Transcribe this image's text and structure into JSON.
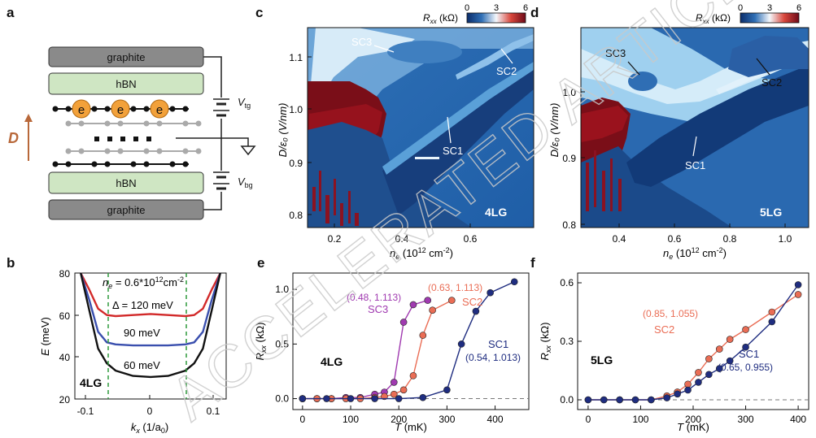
{
  "watermark": "ACCELERATED ARTICLE PREVIEW",
  "panels": {
    "a": {
      "letter": "a",
      "layers": [
        "graphite",
        "hBN",
        "hBN",
        "graphite"
      ],
      "electron_symbol": "e",
      "field_label": "D",
      "gate_top": "V",
      "gate_top_sub": "tg",
      "gate_bottom": "V",
      "gate_bottom_sub": "bg"
    },
    "b": {
      "letter": "b",
      "ne_label": "n",
      "ne_sub": "e",
      "ne_value": " = 0.6*10",
      "ne_exp": "12",
      "ne_unit": "cm",
      "ne_unit_exp": "-2",
      "delta_label": "Δ = 120 meV",
      "label_90": "90 meV",
      "label_60": "60 meV",
      "sample": "4LG",
      "ylabel": "E (meV)",
      "xlabel_main": "k",
      "xlabel_sub": "x",
      "xlabel_unit": " (1/a",
      "xlabel_unit_sub": "0",
      "xlabel_close": ")",
      "yticks": [
        "20",
        "40",
        "60",
        "80"
      ],
      "xticks": [
        "-0.1",
        "0",
        "0.1"
      ]
    },
    "c": {
      "letter": "c",
      "colorbar_label": "R",
      "colorbar_sub": "xx",
      "colorbar_unit": " (kΩ)",
      "colorbar_ticks": [
        "0",
        "3",
        "6"
      ],
      "yticks": [
        "0.8",
        "0.9",
        "1.0",
        "1.1"
      ],
      "xticks": [
        "0.2",
        "0.4",
        "0.6"
      ],
      "ylabel": "D/ε₀ (V/nm)",
      "xlabel": "n",
      "xlabel_sub": "e",
      "xlabel_unit": " (10",
      "xlabel_exp": "12",
      "xlabel_tail": " cm",
      "xlabel_tail_exp": "-2",
      "xlabel_close": ")",
      "sample": "4LG",
      "annotations": [
        "SC3",
        "SC2",
        "SC1"
      ]
    },
    "d": {
      "letter": "d",
      "colorbar_ticks": [
        "0",
        "3",
        "6"
      ],
      "yticks": [
        "0.8",
        "0.9",
        "1.0"
      ],
      "xticks": [
        "0.4",
        "0.6",
        "0.8",
        "1.0"
      ],
      "sample": "5LG",
      "annotations": [
        "SC3",
        "SC2",
        "SC1"
      ]
    },
    "e": {
      "letter": "e",
      "ylabel": "R",
      "ylabel_sub": "xx",
      "ylabel_unit": " (kΩ)",
      "xlabel": "T",
      "xlabel_unit": " (mK)",
      "yticks": [
        "0.0",
        "0.5",
        "1.0"
      ],
      "xticks": [
        "0",
        "100",
        "200",
        "300",
        "400"
      ],
      "sample": "4LG",
      "annot_sc3_coord": "(0.48, 1.113)",
      "annot_sc3": "SC3",
      "annot_sc2_coord": "(0.63, 1.113)",
      "annot_sc2": "SC2",
      "annot_sc1": "SC1",
      "annot_sc1_coord": "(0.54, 1.013)"
    },
    "f": {
      "letter": "f",
      "yticks": [
        "0.0",
        "0.3",
        "0.6"
      ],
      "xticks": [
        "0",
        "100",
        "200",
        "300",
        "400"
      ],
      "sample": "5LG",
      "annot_sc2_coord": "(0.85, 1.055)",
      "annot_sc2": "SC2",
      "annot_sc1": "SC1",
      "annot_sc1_coord": "(0.65, 0.955)"
    }
  },
  "chart_data": [
    {
      "type": "line",
      "panel": "e",
      "xlabel": "T (mK)",
      "ylabel": "Rxx (kΩ)",
      "xlim": [
        -20,
        470
      ],
      "ylim": [
        -0.1,
        1.15
      ],
      "series": [
        {
          "name": "SC3",
          "color": "#a03ab0",
          "x": [
            0,
            30,
            60,
            90,
            120,
            150,
            170,
            190,
            210,
            230,
            260
          ],
          "y": [
            0.0,
            0.0,
            0.0,
            0.01,
            0.01,
            0.04,
            0.06,
            0.15,
            0.7,
            0.86,
            0.9
          ]
        },
        {
          "name": "SC2",
          "color": "#ea6d55",
          "x": [
            0,
            30,
            60,
            90,
            120,
            150,
            170,
            190,
            210,
            230,
            250,
            270,
            310
          ],
          "y": [
            0.0,
            0.0,
            0.0,
            0.0,
            0.0,
            0.01,
            0.02,
            0.04,
            0.08,
            0.21,
            0.58,
            0.81,
            0.9
          ]
        },
        {
          "name": "SC1",
          "color": "#1f2d80",
          "x": [
            0,
            50,
            100,
            150,
            200,
            250,
            300,
            330,
            360,
            390,
            440
          ],
          "y": [
            0.0,
            0.0,
            0.0,
            0.0,
            0.0,
            0.01,
            0.08,
            0.5,
            0.8,
            0.97,
            1.07
          ]
        }
      ]
    },
    {
      "type": "line",
      "panel": "f",
      "xlabel": "T (mK)",
      "ylabel": "Rxx (kΩ)",
      "xlim": [
        -20,
        420
      ],
      "ylim": [
        -0.05,
        0.65
      ],
      "series": [
        {
          "name": "SC2",
          "color": "#ea6d55",
          "x": [
            0,
            30,
            60,
            90,
            120,
            150,
            170,
            190,
            210,
            230,
            250,
            270,
            300,
            350,
            400
          ],
          "y": [
            0.0,
            0.0,
            0.0,
            0.0,
            0.0,
            0.02,
            0.04,
            0.08,
            0.14,
            0.21,
            0.26,
            0.31,
            0.36,
            0.45,
            0.54
          ]
        },
        {
          "name": "SC1",
          "color": "#1f2d80",
          "x": [
            0,
            30,
            60,
            90,
            120,
            150,
            170,
            190,
            210,
            230,
            250,
            270,
            300,
            350,
            400
          ],
          "y": [
            0.0,
            0.0,
            0.0,
            0.0,
            0.0,
            0.01,
            0.03,
            0.05,
            0.09,
            0.13,
            0.16,
            0.2,
            0.27,
            0.4,
            0.59
          ]
        }
      ]
    },
    {
      "type": "line",
      "panel": "b",
      "xlabel": "kx (1/a0)",
      "ylabel": "E (meV)",
      "xlim": [
        -0.13,
        0.13
      ],
      "ylim": [
        20,
        80
      ],
      "series": [
        {
          "name": "Δ = 120 meV",
          "color": "#d22a2a",
          "x": [
            -0.12,
            -0.105,
            -0.09,
            -0.075,
            -0.06,
            -0.03,
            0,
            0.03,
            0.06,
            0.075,
            0.09,
            0.105,
            0.12
          ],
          "y": [
            80,
            72,
            63,
            60,
            59.5,
            60,
            60.5,
            60,
            59.5,
            60,
            63,
            72,
            80
          ]
        },
        {
          "name": "90 meV",
          "color": "#3a4fae",
          "x": [
            -0.12,
            -0.105,
            -0.09,
            -0.075,
            -0.06,
            -0.03,
            0,
            0.03,
            0.06,
            0.075,
            0.09,
            0.105,
            0.12
          ],
          "y": [
            80,
            67,
            52,
            47,
            46,
            45.5,
            45.5,
            45.5,
            46,
            47,
            52,
            67,
            80
          ]
        },
        {
          "name": "60 meV",
          "color": "#111111",
          "x": [
            -0.12,
            -0.105,
            -0.09,
            -0.075,
            -0.06,
            -0.03,
            0,
            0.03,
            0.06,
            0.075,
            0.09,
            0.105,
            0.12
          ],
          "y": [
            80,
            62,
            44,
            37,
            33.5,
            31,
            30.5,
            31,
            33.5,
            37,
            44,
            62,
            80
          ]
        }
      ]
    }
  ]
}
